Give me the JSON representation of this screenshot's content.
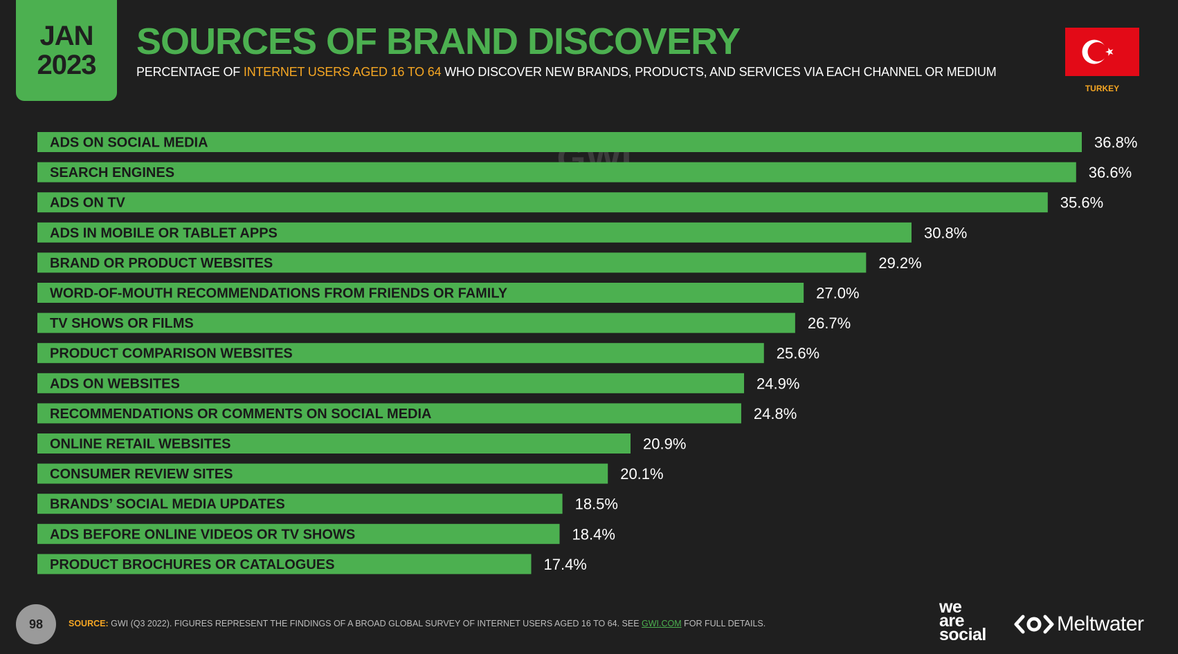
{
  "header": {
    "month": "JAN",
    "year": "2023",
    "title": "SOURCES OF BRAND DISCOVERY",
    "subtitle_pre": "PERCENTAGE OF ",
    "subtitle_highlight": "INTERNET USERS AGED 16 TO 64",
    "subtitle_post": " WHO DISCOVER NEW BRANDS, PRODUCTS, AND SERVICES VIA EACH CHANNEL OR MEDIUM",
    "country": "TURKEY",
    "flag_icon": "turkey-flag-icon"
  },
  "watermark": "GWI.",
  "colors": {
    "accent": "#4cb050",
    "highlight": "#f5a623",
    "background": "#1f1f1f",
    "flag_red": "#e30a17"
  },
  "chart_data": {
    "type": "bar",
    "orientation": "horizontal",
    "categories": [
      "ADS ON SOCIAL MEDIA",
      "SEARCH ENGINES",
      "ADS ON TV",
      "ADS IN MOBILE OR TABLET APPS",
      "BRAND OR PRODUCT WEBSITES",
      "WORD-OF-MOUTH RECOMMENDATIONS FROM FRIENDS OR FAMILY",
      "TV SHOWS OR FILMS",
      "PRODUCT COMPARISON WEBSITES",
      "ADS ON WEBSITES",
      "RECOMMENDATIONS OR COMMENTS ON SOCIAL MEDIA",
      "ONLINE RETAIL WEBSITES",
      "CONSUMER REVIEW SITES",
      "BRANDS’ SOCIAL MEDIA UPDATES",
      "ADS BEFORE ONLINE VIDEOS OR TV SHOWS",
      "PRODUCT BROCHURES OR CATALOGUES"
    ],
    "values": [
      36.8,
      36.6,
      35.6,
      30.8,
      29.2,
      27.0,
      26.7,
      25.6,
      24.9,
      24.8,
      20.9,
      20.1,
      18.5,
      18.4,
      17.4
    ],
    "value_labels": [
      "36.8%",
      "36.6%",
      "35.6%",
      "30.8%",
      "29.2%",
      "27.0%",
      "26.7%",
      "25.6%",
      "24.9%",
      "24.8%",
      "20.9%",
      "20.1%",
      "18.5%",
      "18.4%",
      "17.4%"
    ],
    "unit": "%",
    "xlim": [
      0,
      36.8
    ],
    "grid": false,
    "legend": "none"
  },
  "footer": {
    "page_number": "98",
    "source_label": "SOURCE:",
    "source_text": " GWI (Q3 2022). FIGURES REPRESENT THE FINDINGS OF A BROAD GLOBAL SURVEY OF INTERNET USERS AGED 16 TO 64. SEE ",
    "source_link": "GWI.COM",
    "source_tail": " FOR FULL DETAILS.",
    "brand1_line1": "we",
    "brand1_line2": "are",
    "brand1_line3": "social",
    "brand2": "Meltwater",
    "brand2_icon": "meltwater-logo-icon"
  }
}
